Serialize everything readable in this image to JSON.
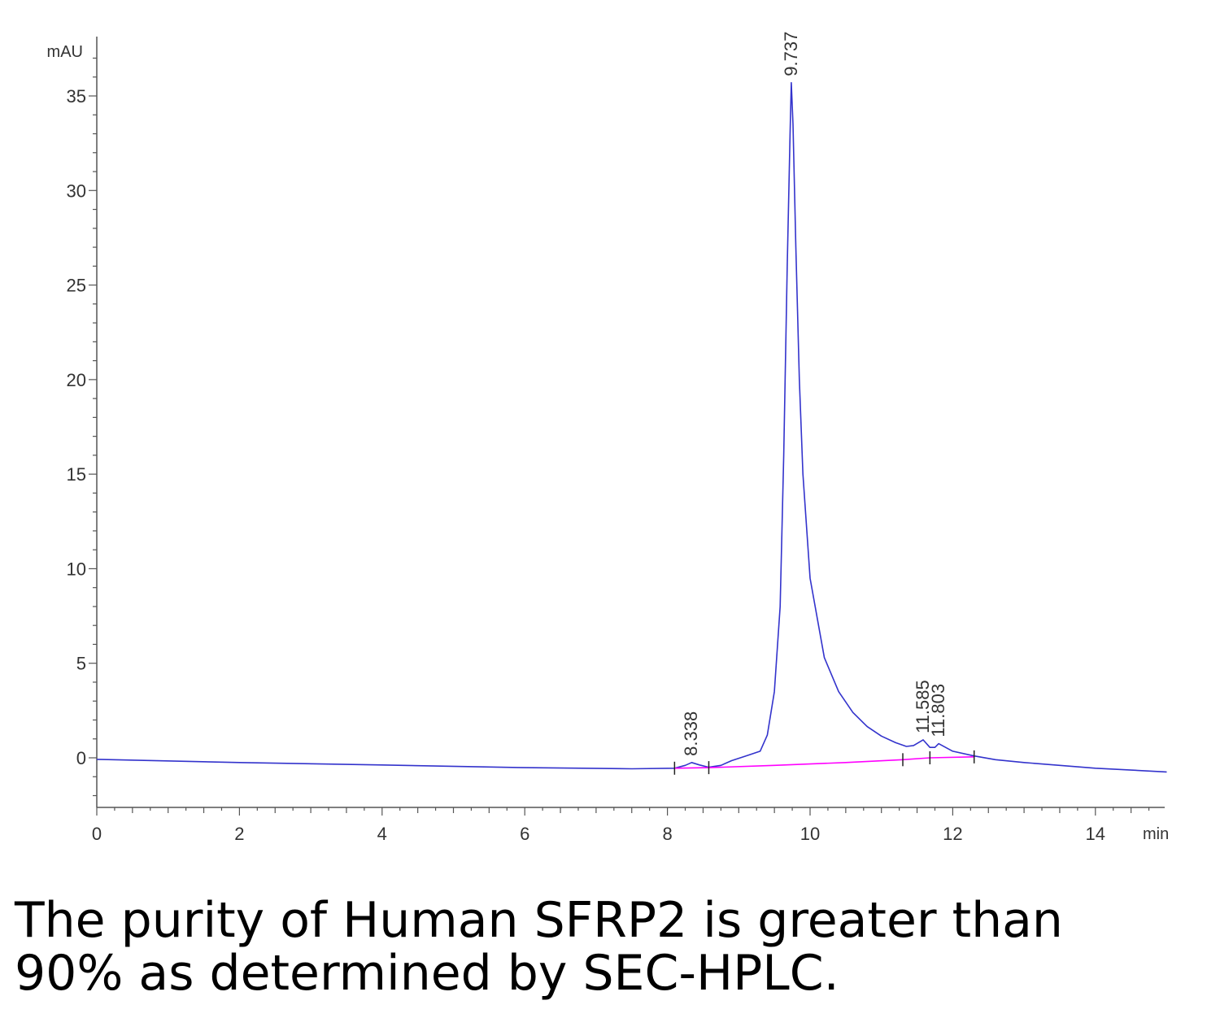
{
  "chart_data": {
    "type": "line",
    "xlabel": "min",
    "ylabel": "mAU",
    "xlim": [
      0,
      15
    ],
    "ylim": [
      -2.6,
      38
    ],
    "x_ticks": [
      0,
      2,
      4,
      6,
      8,
      10,
      12,
      14
    ],
    "y_ticks": [
      0,
      5,
      10,
      15,
      20,
      25,
      30,
      35
    ],
    "series": [
      {
        "role": "signal",
        "color": "#3333cc",
        "points": [
          [
            0,
            -0.08
          ],
          [
            2,
            -0.25
          ],
          [
            4,
            -0.38
          ],
          [
            6,
            -0.52
          ],
          [
            7.5,
            -0.58
          ],
          [
            8.1,
            -0.55
          ],
          [
            8.25,
            -0.4
          ],
          [
            8.34,
            -0.25
          ],
          [
            8.45,
            -0.38
          ],
          [
            8.58,
            -0.5
          ],
          [
            8.75,
            -0.4
          ],
          [
            8.9,
            -0.15
          ],
          [
            9.1,
            0.1
          ],
          [
            9.3,
            0.35
          ],
          [
            9.4,
            1.2
          ],
          [
            9.5,
            3.5
          ],
          [
            9.58,
            8
          ],
          [
            9.63,
            16
          ],
          [
            9.68,
            26
          ],
          [
            9.72,
            33
          ],
          [
            9.737,
            35.7
          ],
          [
            9.76,
            33.5
          ],
          [
            9.8,
            27
          ],
          [
            9.85,
            20
          ],
          [
            9.9,
            15
          ],
          [
            10.0,
            9.5
          ],
          [
            10.2,
            5.3
          ],
          [
            10.4,
            3.5
          ],
          [
            10.6,
            2.4
          ],
          [
            10.8,
            1.65
          ],
          [
            11.0,
            1.15
          ],
          [
            11.2,
            0.8
          ],
          [
            11.35,
            0.6
          ],
          [
            11.45,
            0.65
          ],
          [
            11.585,
            0.95
          ],
          [
            11.68,
            0.55
          ],
          [
            11.75,
            0.55
          ],
          [
            11.803,
            0.75
          ],
          [
            11.9,
            0.55
          ],
          [
            12.0,
            0.35
          ],
          [
            12.3,
            0.1
          ],
          [
            12.6,
            -0.1
          ],
          [
            13.0,
            -0.25
          ],
          [
            13.5,
            -0.4
          ],
          [
            14.0,
            -0.55
          ],
          [
            14.5,
            -0.65
          ],
          [
            15.0,
            -0.75
          ]
        ]
      },
      {
        "role": "baseline",
        "color": "#ff00ff",
        "points": [
          [
            8.1,
            -0.55
          ],
          [
            8.58,
            -0.52
          ],
          [
            9.5,
            -0.4
          ],
          [
            10.5,
            -0.25
          ],
          [
            11.3,
            -0.1
          ],
          [
            11.68,
            0.0
          ],
          [
            12.3,
            0.05
          ]
        ]
      }
    ],
    "peaks": [
      {
        "x": 8.338,
        "y": -0.25,
        "label": "8.338"
      },
      {
        "x": 9.737,
        "y": 35.7,
        "label": "9.737"
      },
      {
        "x": 11.585,
        "y": 0.95,
        "label": "11.585"
      },
      {
        "x": 11.803,
        "y": 0.75,
        "label": "11.803"
      }
    ],
    "integration_marks": [
      8.1,
      8.58,
      11.3,
      11.68,
      12.3
    ]
  },
  "caption": {
    "line1": "The purity of Human SFRP2 is greater than",
    "line2": "90% as determined by SEC-HPLC."
  }
}
